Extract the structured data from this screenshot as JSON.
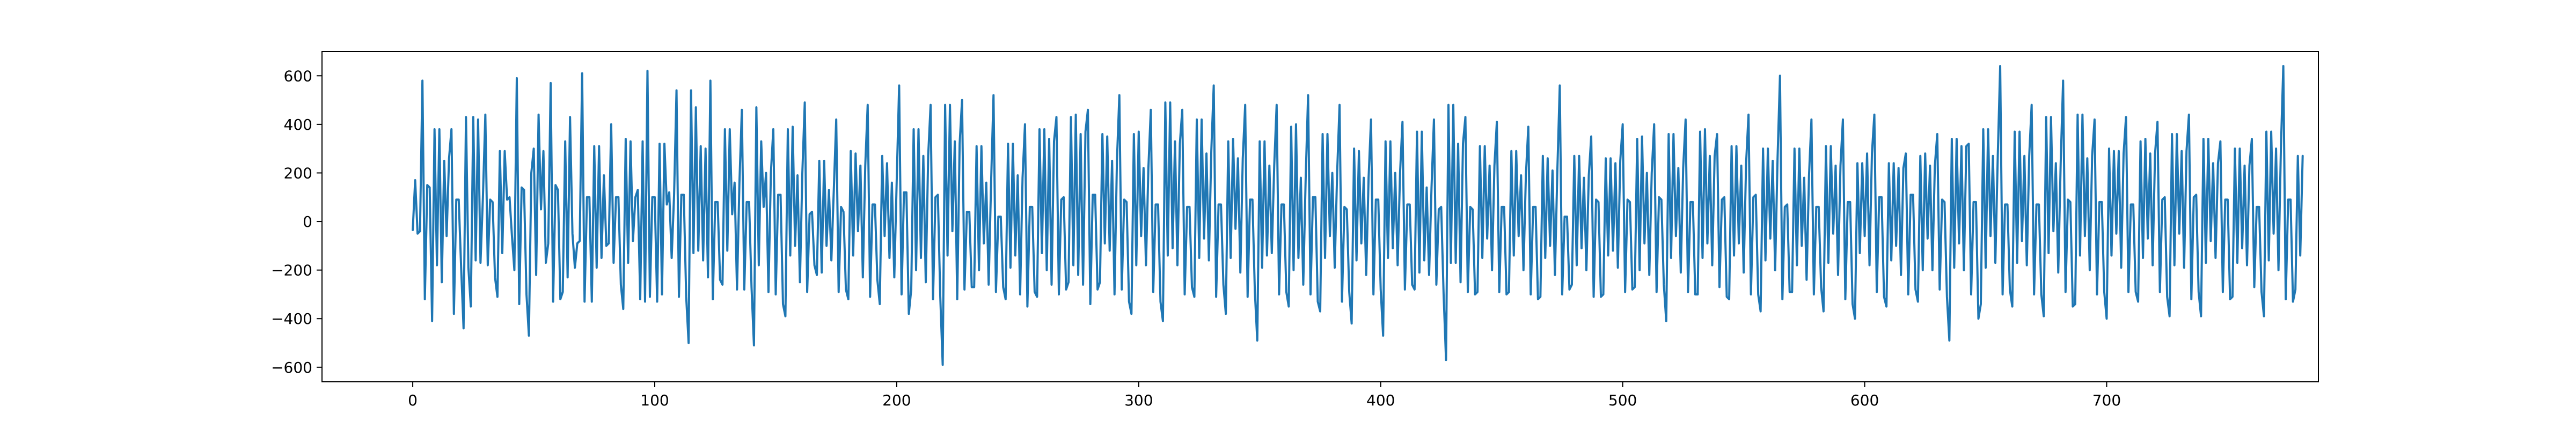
{
  "chart_data": {
    "type": "line",
    "title": "",
    "xlabel": "",
    "ylabel": "",
    "xlim": [
      -37.5,
      787.5
    ],
    "ylim": [
      -660,
      700
    ],
    "x_ticks": [
      0,
      100,
      200,
      300,
      400,
      500,
      600,
      700
    ],
    "y_ticks": [
      -600,
      -400,
      -200,
      0,
      200,
      400,
      600
    ],
    "grid": false,
    "legend": "none",
    "series": [
      {
        "color": "#1f77b4",
        "x_start": 0,
        "x_step": 1,
        "values": [
          -35,
          170,
          -50,
          -40,
          580,
          -320,
          150,
          140,
          -410,
          380,
          -180,
          380,
          -250,
          250,
          -60,
          260,
          380,
          -380,
          90,
          90,
          -190,
          -440,
          430,
          -190,
          -350,
          430,
          -160,
          420,
          -170,
          100,
          440,
          -180,
          90,
          80,
          -230,
          -310,
          290,
          -130,
          290,
          90,
          100,
          -60,
          -200,
          590,
          -340,
          140,
          130,
          -300,
          -470,
          200,
          300,
          -220,
          440,
          50,
          290,
          -170,
          -90,
          570,
          -330,
          150,
          130,
          -320,
          -290,
          330,
          -230,
          430,
          -50,
          -190,
          -90,
          -80,
          610,
          -330,
          100,
          100,
          -330,
          310,
          -190,
          310,
          -150,
          190,
          -100,
          -90,
          400,
          -170,
          100,
          100,
          -260,
          -360,
          340,
          -170,
          330,
          -80,
          100,
          130,
          -320,
          330,
          -330,
          620,
          -310,
          100,
          100,
          -330,
          320,
          -300,
          320,
          70,
          120,
          -150,
          110,
          540,
          -310,
          110,
          110,
          -310,
          -500,
          540,
          -130,
          470,
          -120,
          310,
          -160,
          300,
          -230,
          580,
          -320,
          80,
          80,
          -240,
          -260,
          380,
          -120,
          380,
          30,
          160,
          -280,
          160,
          460,
          -280,
          80,
          80,
          -270,
          -510,
          470,
          -180,
          330,
          60,
          200,
          -290,
          200,
          380,
          -300,
          110,
          110,
          -340,
          -390,
          380,
          -140,
          390,
          -100,
          190,
          -250,
          200,
          490,
          -290,
          30,
          40,
          -180,
          -220,
          250,
          -210,
          250,
          -100,
          130,
          -160,
          130,
          420,
          -290,
          60,
          40,
          -280,
          -320,
          290,
          -140,
          280,
          -40,
          230,
          -230,
          230,
          480,
          -310,
          70,
          70,
          -240,
          -340,
          270,
          -60,
          240,
          -150,
          160,
          -230,
          170,
          560,
          -300,
          120,
          120,
          -380,
          -280,
          380,
          -200,
          380,
          -150,
          270,
          -250,
          270,
          480,
          -320,
          100,
          110,
          -310,
          -590,
          480,
          -140,
          480,
          -40,
          330,
          -320,
          320,
          500,
          -280,
          40,
          40,
          -270,
          -270,
          310,
          -200,
          310,
          -90,
          160,
          -260,
          160,
          520,
          -290,
          20,
          20,
          -270,
          -320,
          320,
          -190,
          320,
          -140,
          190,
          -300,
          180,
          400,
          -350,
          60,
          60,
          -290,
          -310,
          380,
          -130,
          380,
          -200,
          340,
          -260,
          330,
          430,
          -300,
          90,
          100,
          -280,
          -250,
          430,
          -180,
          440,
          -220,
          360,
          -260,
          370,
          460,
          -340,
          110,
          110,
          -280,
          -250,
          360,
          -90,
          350,
          -120,
          250,
          -300,
          250,
          520,
          -280,
          90,
          80,
          -330,
          -380,
          360,
          -180,
          370,
          -60,
          220,
          -180,
          220,
          460,
          -290,
          70,
          70,
          -330,
          -410,
          490,
          -140,
          490,
          -110,
          330,
          -180,
          320,
          460,
          -300,
          60,
          60,
          -270,
          -310,
          420,
          -150,
          420,
          -70,
          280,
          -160,
          290,
          560,
          -310,
          70,
          70,
          -260,
          -380,
          330,
          -150,
          340,
          -30,
          260,
          -210,
          260,
          480,
          -310,
          90,
          90,
          -290,
          -490,
          330,
          -190,
          330,
          -140,
          230,
          -130,
          230,
          480,
          -300,
          70,
          70,
          -290,
          -350,
          390,
          -200,
          400,
          -150,
          180,
          -260,
          180,
          520,
          -300,
          100,
          100,
          -330,
          -370,
          360,
          -150,
          360,
          -60,
          200,
          -190,
          200,
          480,
          -330,
          60,
          50,
          -290,
          -420,
          300,
          -160,
          290,
          -90,
          180,
          -220,
          180,
          420,
          -300,
          90,
          90,
          -280,
          -470,
          330,
          -150,
          330,
          -110,
          200,
          -180,
          200,
          410,
          -280,
          70,
          70,
          -260,
          -280,
          370,
          -210,
          370,
          -160,
          140,
          -220,
          140,
          420,
          -260,
          50,
          60,
          -300,
          -570,
          480,
          -170,
          480,
          -170,
          320,
          -250,
          320,
          430,
          -290,
          60,
          50,
          -300,
          -290,
          310,
          -150,
          310,
          -70,
          230,
          -200,
          230,
          410,
          -290,
          60,
          60,
          -300,
          -290,
          290,
          -140,
          290,
          -60,
          190,
          -200,
          190,
          390,
          -300,
          60,
          60,
          -320,
          -310,
          270,
          -150,
          260,
          -100,
          210,
          -220,
          210,
          560,
          -300,
          20,
          20,
          -280,
          -260,
          270,
          -180,
          270,
          -110,
          180,
          -200,
          190,
          350,
          -310,
          90,
          80,
          -310,
          -300,
          260,
          -140,
          260,
          -120,
          240,
          -190,
          250,
          400,
          -290,
          90,
          80,
          -280,
          -270,
          340,
          -200,
          350,
          -90,
          200,
          -220,
          200,
          400,
          -290,
          100,
          90,
          -260,
          -410,
          360,
          -150,
          360,
          -60,
          220,
          -210,
          220,
          420,
          -290,
          80,
          80,
          -300,
          -300,
          370,
          -150,
          380,
          -90,
          270,
          -180,
          270,
          360,
          -270,
          90,
          100,
          -310,
          -320,
          310,
          -140,
          310,
          -90,
          230,
          -210,
          240,
          440,
          -300,
          100,
          110,
          -300,
          -370,
          300,
          -160,
          300,
          -70,
          250,
          -200,
          260,
          600,
          -320,
          60,
          70,
          -290,
          -290,
          300,
          -180,
          300,
          -100,
          180,
          -240,
          190,
          420,
          -300,
          60,
          60,
          -270,
          -370,
          310,
          -170,
          310,
          -50,
          230,
          -220,
          230,
          420,
          -320,
          80,
          80,
          -340,
          -400,
          240,
          -130,
          240,
          -60,
          280,
          -180,
          280,
          440,
          -290,
          100,
          100,
          -310,
          -350,
          240,
          -160,
          240,
          -100,
          220,
          -220,
          220,
          280,
          -300,
          110,
          110,
          -280,
          -330,
          270,
          -200,
          280,
          -70,
          230,
          -200,
          230,
          360,
          -280,
          90,
          80,
          -310,
          -490,
          340,
          -190,
          340,
          -90,
          310,
          -200,
          310,
          320,
          -300,
          80,
          80,
          -400,
          -340,
          380,
          -190,
          380,
          -60,
          270,
          -170,
          270,
          640,
          -300,
          70,
          70,
          -280,
          -350,
          370,
          -170,
          370,
          -80,
          270,
          -180,
          270,
          480,
          -300,
          70,
          70,
          -300,
          -390,
          430,
          -130,
          430,
          -40,
          240,
          -210,
          240,
          580,
          -290,
          90,
          80,
          -350,
          -340,
          440,
          -140,
          440,
          -60,
          260,
          -200,
          270,
          420,
          -300,
          80,
          80,
          -290,
          -400,
          300,
          -140,
          290,
          -50,
          290,
          -190,
          280,
          430,
          -290,
          70,
          70,
          -290,
          -330,
          330,
          -150,
          340,
          -70,
          280,
          -180,
          280,
          410,
          -290,
          90,
          100,
          -310,
          -390,
          360,
          -180,
          360,
          -50,
          290,
          -190,
          290,
          440,
          -320,
          100,
          110,
          -290,
          -390,
          340,
          -170,
          340,
          -80,
          240,
          -150,
          240,
          330,
          -290,
          90,
          90,
          -320,
          -310,
          300,
          -170,
          300,
          -110,
          230,
          -180,
          230,
          340,
          -270,
          60,
          60,
          -290,
          -390,
          370,
          -160,
          370,
          -50,
          300,
          -200,
          300,
          640,
          -320,
          90,
          90,
          -330,
          -280,
          270,
          -140,
          270
        ]
      }
    ]
  }
}
